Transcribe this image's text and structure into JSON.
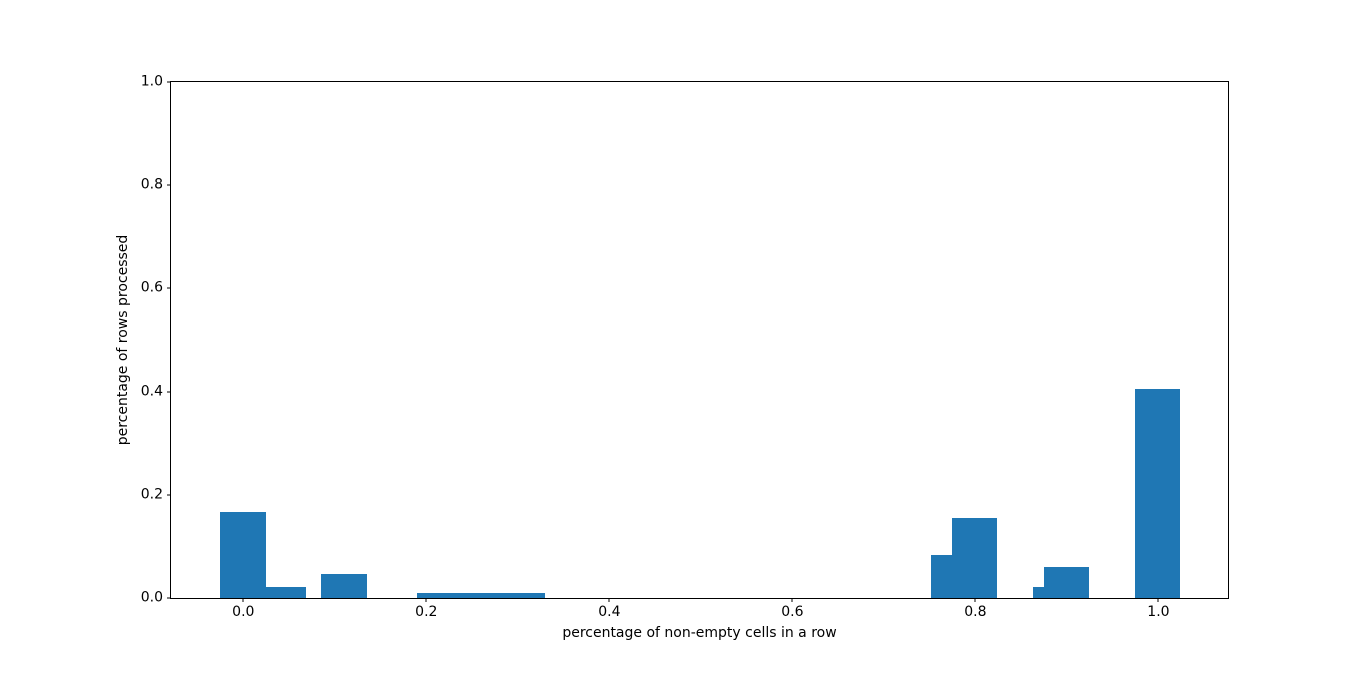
{
  "figure": {
    "background": "#ffffff",
    "text_color": "#000000"
  },
  "chart_data": {
    "type": "bar",
    "title": "",
    "xlabel": "percentage of non-empty cells in a row",
    "ylabel": "percentage of rows processed",
    "xlim": [
      -0.079,
      1.076
    ],
    "ylim": [
      0,
      1.0
    ],
    "grid": false,
    "legend": null,
    "bar_color": "#1f77b4",
    "xticks": [
      {
        "value": 0.0,
        "label": "0.0"
      },
      {
        "value": 0.2,
        "label": "0.2"
      },
      {
        "value": 0.4,
        "label": "0.4"
      },
      {
        "value": 0.6,
        "label": "0.6"
      },
      {
        "value": 0.8,
        "label": "0.8"
      },
      {
        "value": 1.0,
        "label": "1.0"
      }
    ],
    "yticks": [
      {
        "value": 0.0,
        "label": "0.0"
      },
      {
        "value": 0.2,
        "label": "0.2"
      },
      {
        "value": 0.4,
        "label": "0.4"
      },
      {
        "value": 0.6,
        "label": "0.6"
      },
      {
        "value": 0.8,
        "label": "0.8"
      },
      {
        "value": 1.0,
        "label": "1.0"
      }
    ],
    "bars": [
      {
        "x0": -0.026,
        "x1": 0.025,
        "height": 0.167
      },
      {
        "x0": 0.025,
        "x1": 0.068,
        "height": 0.022
      },
      {
        "x0": 0.085,
        "x1": 0.135,
        "height": 0.047
      },
      {
        "x0": 0.19,
        "x1": 0.33,
        "height": 0.01
      },
      {
        "x0": 0.752,
        "x1": 0.774,
        "height": 0.083
      },
      {
        "x0": 0.774,
        "x1": 0.824,
        "height": 0.155
      },
      {
        "x0": 0.863,
        "x1": 0.875,
        "height": 0.021
      },
      {
        "x0": 0.875,
        "x1": 0.924,
        "height": 0.061
      },
      {
        "x0": 0.974,
        "x1": 1.024,
        "height": 0.406
      }
    ]
  }
}
